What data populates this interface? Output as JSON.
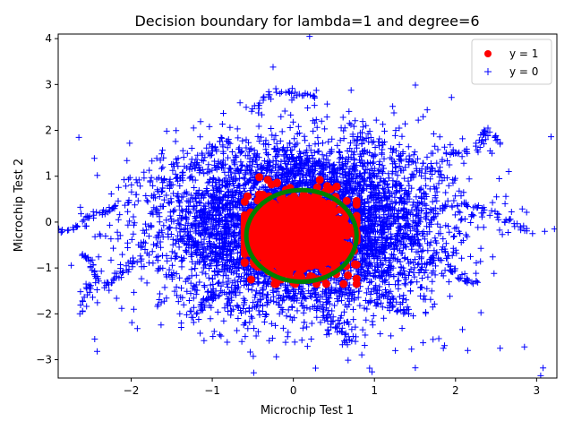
{
  "chart_data": {
    "type": "scatter",
    "title": "Decision boundary for lambda=1 and degree=6",
    "xlabel": "Microchip Test 1",
    "ylabel": "Microchip Test 2",
    "xlim": [
      -2.9,
      3.25
    ],
    "ylim": [
      -3.4,
      4.1
    ],
    "x_ticks": [
      -2,
      -1,
      0,
      1,
      2,
      3
    ],
    "y_ticks": [
      -3,
      -2,
      -1,
      0,
      1,
      2,
      3,
      4
    ],
    "x_tick_labels": [
      "−2",
      "−1",
      "0",
      "1",
      "2",
      "3"
    ],
    "y_tick_labels": [
      "−3",
      "−2",
      "−1",
      "0",
      "1",
      "2",
      "3",
      "4"
    ],
    "grid": false,
    "legend_position": "top-right",
    "series": [
      {
        "name": "y = 1",
        "marker": "circle",
        "color": "#ff0000",
        "approx_count": 1500,
        "distribution": "dense cluster",
        "center": [
          0.05,
          -0.28
        ],
        "spread": [
          0.3,
          0.38
        ],
        "x_range": [
          -0.6,
          0.78
        ],
        "y_range": [
          -1.35,
          1.0
        ],
        "outliers": [
          [
            -0.42,
            0.98
          ],
          [
            -0.27,
            0.82
          ],
          [
            -0.2,
            0.86
          ],
          [
            -0.38,
            0.55
          ],
          [
            -0.5,
            0.05
          ],
          [
            -0.15,
            -1.25
          ],
          [
            0.0,
            -1.32
          ],
          [
            0.1,
            -1.2
          ],
          [
            0.65,
            0.2
          ]
        ]
      },
      {
        "name": "y = 0",
        "marker": "plus",
        "color": "#0000ff",
        "approx_count": 6000,
        "distribution": "dense cloud",
        "center": [
          0.1,
          -0.1
        ],
        "spread": [
          0.85,
          0.9
        ],
        "x_range": [
          -2.9,
          3.25
        ],
        "y_range": [
          -3.4,
          4.1
        ],
        "outliers": [
          [
            0.2,
            4.05
          ],
          [
            -0.25,
            3.38
          ],
          [
            1.95,
            2.72
          ],
          [
            -2.45,
            -2.55
          ],
          [
            -2.42,
            -2.82
          ],
          [
            -2.5,
            -1.45
          ],
          [
            1.6,
            -2.63
          ],
          [
            1.85,
            -2.75
          ],
          [
            2.15,
            -2.8
          ],
          [
            2.55,
            -2.75
          ],
          [
            2.85,
            -2.72
          ],
          [
            3.08,
            -3.18
          ],
          [
            3.05,
            -3.35
          ],
          [
            3.22,
            -0.15
          ],
          [
            2.95,
            -0.25
          ],
          [
            3.1,
            -0.2
          ],
          [
            -2.85,
            -0.2
          ],
          [
            -2.6,
            -0.7
          ],
          [
            -1.6,
            1.4
          ],
          [
            1.6,
            2.3
          ],
          [
            2.4,
            2.05
          ],
          [
            2.55,
            1.7
          ],
          [
            2.45,
            1.5
          ],
          [
            1.7,
            1.5
          ],
          [
            -2.6,
            -1.95
          ]
        ],
        "trails": [
          [
            [
              -2.85,
              -0.2
            ],
            [
              -2.6,
              -0.05
            ],
            [
              -2.4,
              0.2
            ],
            [
              -2.2,
              0.35
            ],
            [
              -2.0,
              0.45
            ]
          ],
          [
            [
              -2.6,
              -0.7
            ],
            [
              -2.5,
              -0.9
            ],
            [
              -2.4,
              -1.2
            ],
            [
              -2.55,
              -1.5
            ],
            [
              -2.6,
              -1.9
            ]
          ],
          [
            [
              -1.8,
              0.5
            ],
            [
              -1.5,
              0.8
            ],
            [
              -1.25,
              1.3
            ],
            [
              -1.0,
              1.6
            ],
            [
              -0.7,
              1.9
            ]
          ],
          [
            [
              -0.5,
              2.4
            ],
            [
              -0.35,
              2.7
            ],
            [
              -0.1,
              2.85
            ],
            [
              0.1,
              2.8
            ],
            [
              0.35,
              2.7
            ]
          ],
          [
            [
              0.8,
              1.9
            ],
            [
              1.1,
              1.7
            ],
            [
              1.4,
              1.4
            ],
            [
              1.7,
              1.1
            ],
            [
              2.0,
              0.9
            ]
          ],
          [
            [
              1.9,
              1.5
            ],
            [
              2.1,
              1.5
            ],
            [
              2.3,
              1.75
            ],
            [
              2.4,
              2.0
            ],
            [
              2.55,
              1.7
            ]
          ],
          [
            [
              1.2,
              0.3
            ],
            [
              1.5,
              0.2
            ],
            [
              1.9,
              0.3
            ],
            [
              2.2,
              0.4
            ],
            [
              2.45,
              0.2
            ],
            [
              2.7,
              -0.05
            ],
            [
              2.9,
              -0.2
            ]
          ],
          [
            [
              0.9,
              -1.2
            ],
            [
              1.1,
              -1.6
            ],
            [
              1.3,
              -1.9
            ],
            [
              1.45,
              -2.0
            ]
          ],
          [
            [
              0.3,
              -1.8
            ],
            [
              0.45,
              -2.1
            ],
            [
              0.6,
              -2.4
            ],
            [
              0.75,
              -2.6
            ]
          ],
          [
            [
              -0.9,
              -1.5
            ],
            [
              -1.05,
              -1.7
            ],
            [
              -1.15,
              -1.85
            ],
            [
              -1.25,
              -2.0
            ]
          ],
          [
            [
              1.7,
              -0.8
            ],
            [
              1.95,
              -1.0
            ],
            [
              2.1,
              -1.25
            ],
            [
              2.2,
              -1.3
            ]
          ],
          [
            [
              -1.9,
              -0.8
            ],
            [
              -2.1,
              -1.05
            ],
            [
              -2.25,
              -1.3
            ],
            [
              -2.4,
              -1.45
            ]
          ]
        ]
      }
    ],
    "decision_boundary": {
      "color": "#008000",
      "center": [
        0.1,
        -0.3
      ],
      "radius_x": 0.68,
      "radius_y": 1.0
    }
  }
}
